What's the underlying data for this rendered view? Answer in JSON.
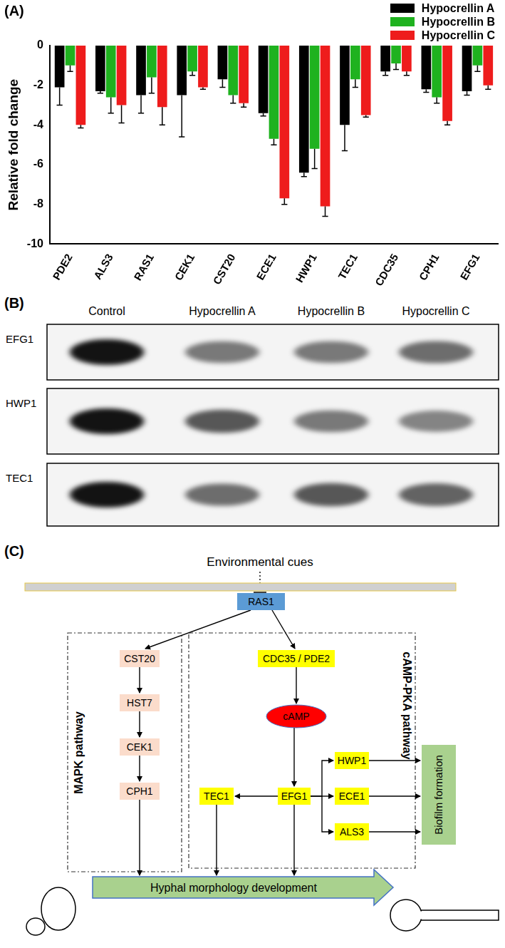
{
  "panel_labels": [
    "(A)",
    "(B)",
    "(C)"
  ],
  "chart_data": {
    "type": "bar",
    "y_label": "Relative fold change",
    "categories": [
      "PDE2",
      "ALS3",
      "RAS1",
      "CEK1",
      "CST20",
      "ECE1",
      "HWP1",
      "TEC1",
      "CDC35",
      "CPH1",
      "EFG1"
    ],
    "series": [
      {
        "name": "Hypocrellin A",
        "color": "#000000",
        "values": [
          -2.1,
          -2.3,
          -2.5,
          -2.5,
          -1.7,
          -3.4,
          -6.4,
          -4.0,
          -1.3,
          -2.2,
          -2.3
        ],
        "errors": [
          0.9,
          0.1,
          0.9,
          2.1,
          0.4,
          0.15,
          0.2,
          1.3,
          0.2,
          0.15,
          0.2
        ]
      },
      {
        "name": "Hypocrellin B",
        "color": "#1fb21f",
        "values": [
          -1.0,
          -2.6,
          -1.6,
          -1.3,
          -2.5,
          -4.7,
          -5.2,
          -1.7,
          -0.9,
          -2.6,
          -1.0
        ],
        "errors": [
          0.3,
          0.8,
          0.8,
          0.2,
          0.4,
          0.3,
          1.0,
          0.4,
          0.3,
          0.3,
          0.3
        ]
      },
      {
        "name": "Hypocrellin C",
        "color": "#ee1c1c",
        "values": [
          -4.0,
          -3.0,
          -3.1,
          -2.1,
          -2.9,
          -7.7,
          -8.1,
          -3.5,
          -1.3,
          -3.8,
          -2.0
        ],
        "errors": [
          0.15,
          0.9,
          0.9,
          0.1,
          0.2,
          0.3,
          0.5,
          0.1,
          0.2,
          0.2,
          0.2
        ]
      }
    ],
    "ylim": [
      -10,
      0
    ],
    "yticks": [
      -10,
      -8,
      -6,
      -4,
      -2,
      0
    ],
    "grid": false,
    "legend": "upper right"
  },
  "blot": {
    "columns": [
      "Control",
      "Hypocrellin A",
      "Hypocrellin B",
      "Hypocrellin C"
    ],
    "rows": [
      {
        "label": "EFG1",
        "intensity": [
          1.0,
          0.55,
          0.55,
          0.6
        ]
      },
      {
        "label": "HWP1",
        "intensity": [
          1.0,
          0.7,
          0.55,
          0.5
        ]
      },
      {
        "label": "TEC1",
        "intensity": [
          1.0,
          0.6,
          0.7,
          0.65
        ]
      }
    ]
  },
  "diagram": {
    "input": "Environmental cues",
    "nodes": [
      "RAS1",
      "CST20",
      "HST7",
      "CEK1",
      "CPH1",
      "CDC35 / PDE2",
      "cAMP",
      "EFG1",
      "TEC1",
      "HWP1",
      "ECE1",
      "ALS3"
    ],
    "groups": [
      "MAPK pathway",
      "cAMP-PKA pathway"
    ],
    "outputs": [
      "Biofilm formation",
      "Hyphal morphology development"
    ]
  }
}
